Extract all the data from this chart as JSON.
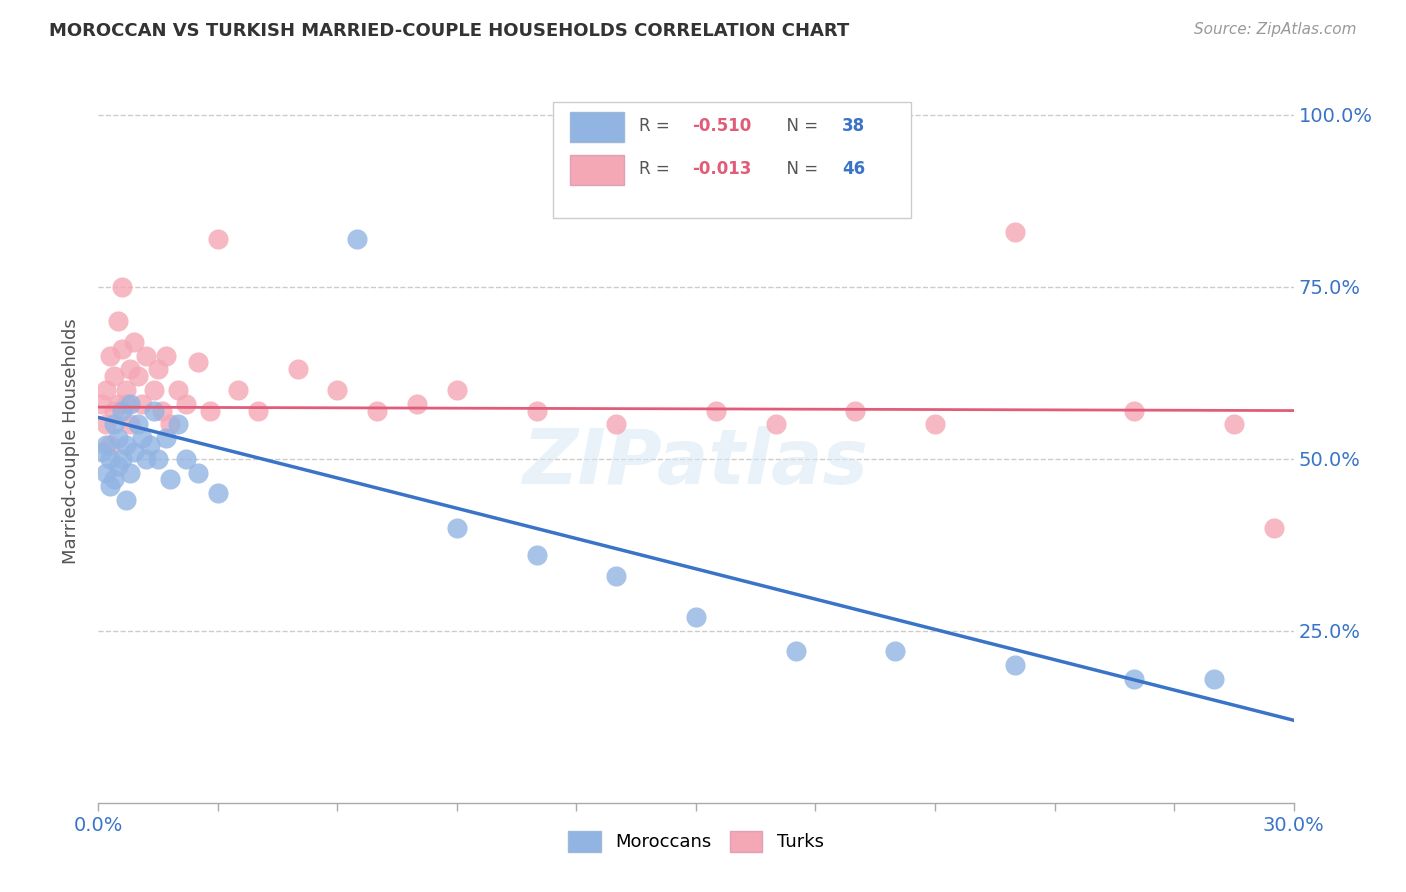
{
  "title": "MOROCCAN VS TURKISH MARRIED-COUPLE HOUSEHOLDS CORRELATION CHART",
  "source": "Source: ZipAtlas.com",
  "ylabel": "Married-couple Households",
  "xmin": 0.0,
  "xmax": 0.3,
  "ymin": 0.0,
  "ymax": 1.05,
  "moroccan_R": -0.51,
  "moroccan_N": 38,
  "turkish_R": -0.013,
  "turkish_N": 46,
  "moroccan_color": "#92b4e3",
  "turkish_color": "#f4a7b5",
  "moroccan_line_color": "#3a74c8",
  "turkish_line_color": "#e05c78",
  "watermark": "ZIPatlas",
  "grid_color": "#cccccc",
  "moroccan_x": [
    0.001,
    0.002,
    0.002,
    0.003,
    0.003,
    0.004,
    0.004,
    0.005,
    0.005,
    0.006,
    0.006,
    0.007,
    0.007,
    0.008,
    0.008,
    0.009,
    0.01,
    0.011,
    0.012,
    0.013,
    0.014,
    0.015,
    0.017,
    0.018,
    0.02,
    0.022,
    0.025,
    0.03,
    0.065,
    0.09,
    0.11,
    0.13,
    0.15,
    0.175,
    0.2,
    0.23,
    0.26,
    0.28
  ],
  "moroccan_y": [
    0.51,
    0.48,
    0.52,
    0.5,
    0.46,
    0.55,
    0.47,
    0.53,
    0.49,
    0.57,
    0.5,
    0.52,
    0.44,
    0.48,
    0.58,
    0.51,
    0.55,
    0.53,
    0.5,
    0.52,
    0.57,
    0.5,
    0.53,
    0.47,
    0.55,
    0.5,
    0.48,
    0.45,
    0.82,
    0.4,
    0.36,
    0.33,
    0.27,
    0.22,
    0.22,
    0.2,
    0.18,
    0.18
  ],
  "turkish_x": [
    0.001,
    0.002,
    0.002,
    0.003,
    0.003,
    0.004,
    0.004,
    0.005,
    0.005,
    0.006,
    0.006,
    0.007,
    0.007,
    0.008,
    0.008,
    0.009,
    0.01,
    0.011,
    0.012,
    0.014,
    0.015,
    0.016,
    0.017,
    0.018,
    0.02,
    0.022,
    0.025,
    0.028,
    0.03,
    0.035,
    0.04,
    0.05,
    0.06,
    0.07,
    0.08,
    0.09,
    0.11,
    0.13,
    0.155,
    0.17,
    0.19,
    0.21,
    0.23,
    0.26,
    0.285,
    0.295
  ],
  "turkish_y": [
    0.58,
    0.55,
    0.6,
    0.52,
    0.65,
    0.62,
    0.57,
    0.7,
    0.58,
    0.75,
    0.66,
    0.6,
    0.58,
    0.63,
    0.55,
    0.67,
    0.62,
    0.58,
    0.65,
    0.6,
    0.63,
    0.57,
    0.65,
    0.55,
    0.6,
    0.58,
    0.64,
    0.57,
    0.82,
    0.6,
    0.57,
    0.63,
    0.6,
    0.57,
    0.58,
    0.6,
    0.57,
    0.55,
    0.57,
    0.55,
    0.57,
    0.55,
    0.83,
    0.57,
    0.55,
    0.4
  ],
  "moroccan_line_x": [
    0.0,
    0.3
  ],
  "moroccan_line_y": [
    0.56,
    0.12
  ],
  "turkish_line_x": [
    0.0,
    0.3
  ],
  "turkish_line_y": [
    0.575,
    0.57
  ]
}
